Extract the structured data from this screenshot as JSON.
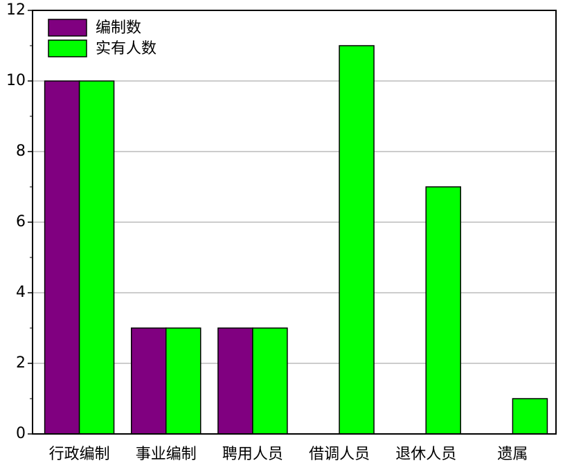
{
  "chart_data": {
    "type": "bar",
    "categories": [
      "行政编制",
      "事业编制",
      "聘用人员",
      "借调人员",
      "退休人员",
      "遗属"
    ],
    "series": [
      {
        "name": "编制数",
        "color": "#800080",
        "values": [
          10,
          3,
          3,
          null,
          null,
          null
        ]
      },
      {
        "name": "实有人数",
        "color": "#00ff00",
        "values": [
          10,
          3,
          3,
          11,
          7,
          1
        ]
      }
    ],
    "ylim": [
      0,
      12
    ],
    "yticks": [
      0,
      2,
      4,
      6,
      8,
      10,
      12
    ],
    "grid": true,
    "legend": "upper left"
  }
}
